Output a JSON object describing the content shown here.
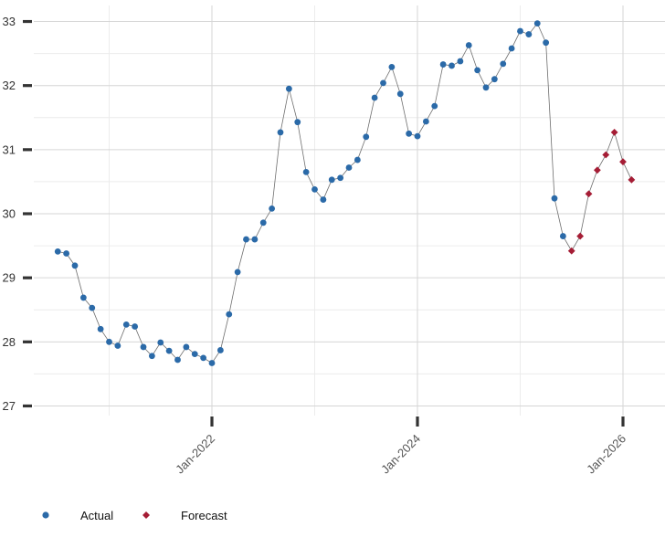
{
  "chart_data": {
    "type": "line",
    "title": "",
    "xlabel": "",
    "ylabel": "",
    "ylim": [
      26.85,
      33.25
    ],
    "y_ticks": [
      27,
      28,
      29,
      30,
      31,
      32,
      33
    ],
    "y_tick_labels": [
      "27",
      "28",
      "29",
      "30",
      "31",
      "32",
      "33"
    ],
    "x_ticks": [
      "2022-01",
      "2024-01",
      "2026-01"
    ],
    "x_tick_labels": [
      "Jan-2022",
      "Jan-2024",
      "Jan-2026"
    ],
    "grid": true,
    "legend_position": "bottom-left",
    "series": [
      {
        "name": "Actual",
        "color": "#2b6aa8",
        "marker": "circle",
        "x": [
          "2020-07",
          "2020-08",
          "2020-09",
          "2020-10",
          "2020-11",
          "2020-12",
          "2021-01",
          "2021-02",
          "2021-03",
          "2021-04",
          "2021-05",
          "2021-06",
          "2021-07",
          "2021-08",
          "2021-09",
          "2021-10",
          "2021-11",
          "2021-12",
          "2022-01",
          "2022-02",
          "2022-03",
          "2022-04",
          "2022-05",
          "2022-06",
          "2022-07",
          "2022-08",
          "2022-09",
          "2022-10",
          "2022-11",
          "2022-12",
          "2023-01",
          "2023-02",
          "2023-03",
          "2023-04",
          "2023-05",
          "2023-06",
          "2023-07",
          "2023-08",
          "2023-09",
          "2023-10",
          "2023-11",
          "2023-12",
          "2024-01",
          "2024-02",
          "2024-03",
          "2024-04",
          "2024-05",
          "2024-06",
          "2024-07",
          "2024-08",
          "2024-09",
          "2024-10",
          "2024-11",
          "2024-12",
          "2025-01",
          "2025-02",
          "2025-03",
          "2025-04",
          "2025-05",
          "2025-06"
        ],
        "values": [
          29.41,
          29.38,
          29.19,
          28.69,
          28.53,
          28.2,
          28.0,
          27.94,
          28.27,
          28.24,
          27.92,
          27.78,
          27.99,
          27.86,
          27.72,
          27.92,
          27.81,
          27.75,
          27.67,
          27.87,
          28.43,
          29.09,
          29.6,
          29.6,
          29.86,
          30.08,
          31.27,
          31.95,
          31.43,
          30.65,
          30.38,
          30.22,
          30.53,
          30.56,
          30.72,
          30.84,
          31.2,
          31.81,
          32.04,
          32.29,
          31.87,
          31.25,
          31.21,
          31.44,
          31.68,
          32.33,
          32.31,
          32.38,
          32.63,
          32.24,
          31.97,
          32.1,
          32.34,
          32.58,
          32.85,
          32.8,
          32.97,
          32.67,
          30.24,
          29.65
        ]
      },
      {
        "name": "Forecast",
        "color": "#a51d35",
        "marker": "diamond",
        "x": [
          "2025-07",
          "2025-08",
          "2025-09",
          "2025-10",
          "2025-11",
          "2025-12",
          "2026-01",
          "2026-02"
        ],
        "values": [
          29.42,
          29.65,
          30.31,
          30.68,
          30.92,
          31.27,
          30.81,
          30.53
        ]
      }
    ]
  }
}
